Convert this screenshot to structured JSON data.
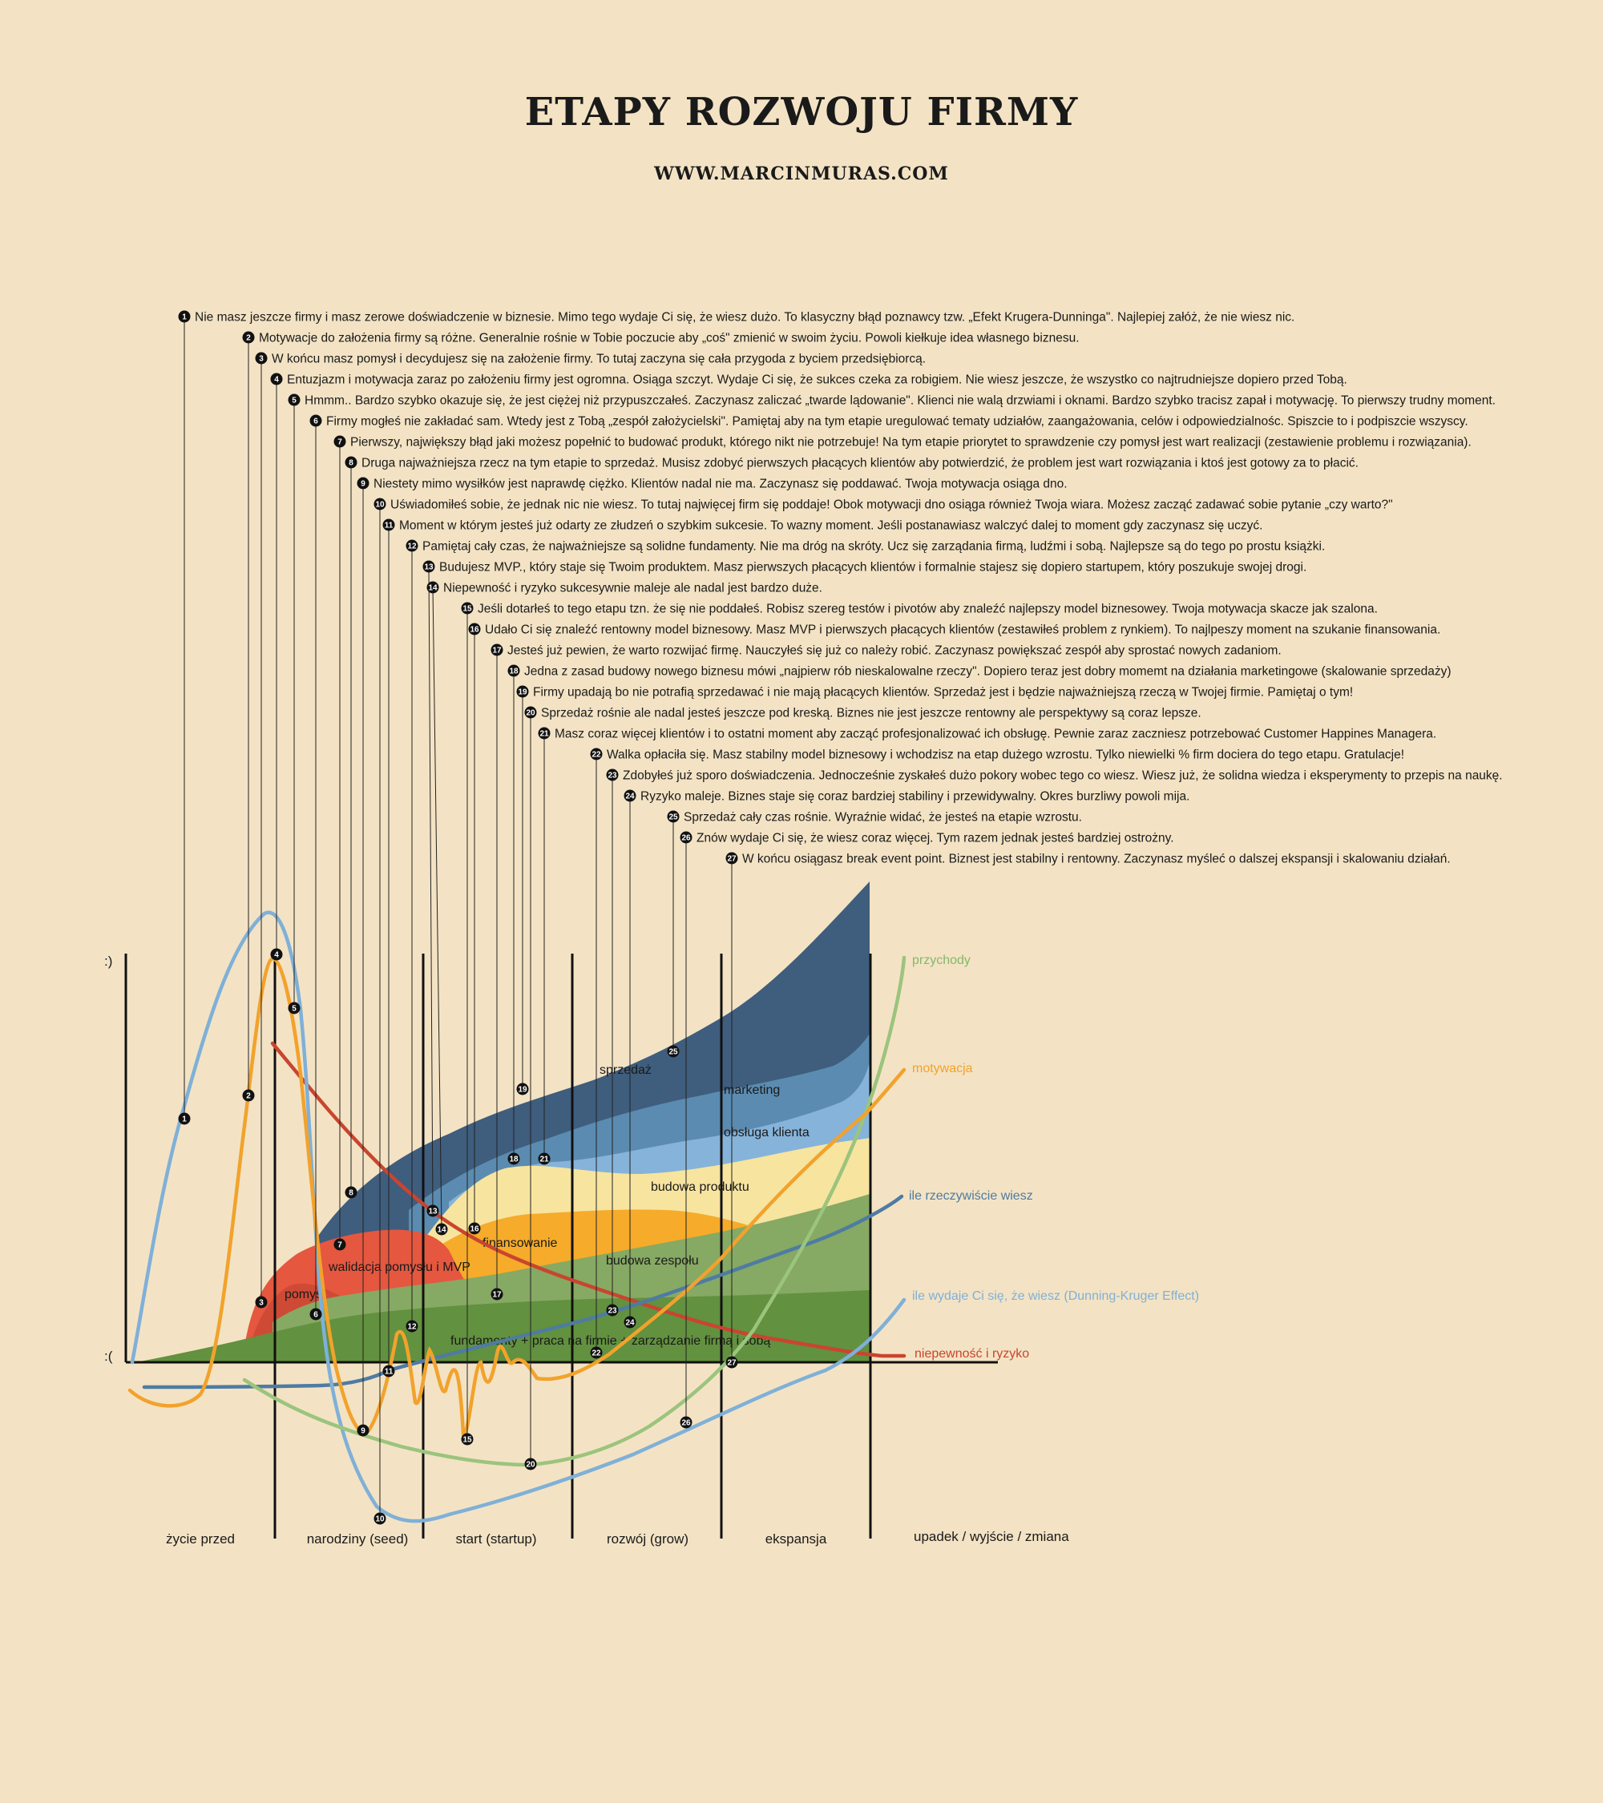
{
  "header": {
    "title": "ETAPY ROZWOJU FIRMY",
    "subtitle": "WWW.MARCINMURAS.COM"
  },
  "axis": {
    "top_label": ":)",
    "bottom_label": ":("
  },
  "notes": [
    {
      "n": "1",
      "text": "Nie masz jeszcze firmy i masz zerowe doświadczenie w biznesie. Mimo tego wydaje Ci się, że wiesz dużo. To klasyczny błąd poznawcy tzw. „Efekt Krugera-Dunninga\". Najlepiej załóż, że nie wiesz nic."
    },
    {
      "n": "2",
      "text": "Motywacje do założenia firmy są różne. Generalnie rośnie w Tobie poczucie aby „coś\" zmienić w swoim życiu. Powoli kiełkuje idea własnego biznesu."
    },
    {
      "n": "3",
      "text": "W końcu masz pomysł i decydujesz się na założenie firmy. To tutaj zaczyna się cała przygoda z byciem przedsiębiorcą."
    },
    {
      "n": "4",
      "text": "Entuzjazm i motywacja zaraz po założeniu firmy jest ogromna. Osiąga szczyt. Wydaje Ci się, że sukces czeka za robigiem. Nie wiesz jeszcze, że wszystko co najtrudniejsze dopiero przed Tobą."
    },
    {
      "n": "5",
      "text": "Hmmm.. Bardzo szybko okazuje się, że jest ciężej niż przypuszczałeś. Zaczynasz zaliczać „twarde lądowanie\". Klienci nie walą drzwiami i oknami. Bardzo szybko tracisz zapał i motywację. To pierwszy trudny moment."
    },
    {
      "n": "6",
      "text": "Firmy mogłeś nie zakładać sam. Wtedy jest z Tobą „zespół założycielski\". Pamiętaj aby na tym etapie uregulować tematy udziałów, zaangażowania, celów i odpowiedzialnośc. Spiszcie to i podpiszcie wszyscy."
    },
    {
      "n": "7",
      "text": "Pierwszy, największy błąd jaki możesz popełnić to budować produkt, którego nikt nie potrzebuje! Na tym etapie priorytet to sprawdzenie czy pomysł jest wart realizacji (zestawienie problemu i rozwiązania)."
    },
    {
      "n": "8",
      "text": "Druga najważniejsza rzecz na tym etapie to sprzedaż. Musisz zdobyć pierwszych płacących klientów aby potwierdzić, że problem jest wart rozwiązania i ktoś jest gotowy za to płacić."
    },
    {
      "n": "9",
      "text": "Niestety mimo wysiłków jest naprawdę ciężko. Klientów nadal nie ma. Zaczynasz się poddawać. Twoja motywacja osiąga dno."
    },
    {
      "n": "10",
      "text": "Uświadomiłeś sobie, że jednak nic nie wiesz. To tutaj najwięcej firm się poddaje! Obok motywacji dno osiąga również Twoja wiara. Możesz zacząć zadawać sobie pytanie „czy warto?\""
    },
    {
      "n": "11",
      "text": "Moment w którym jesteś już odarty ze złudzeń o szybkim sukcesie. To wazny moment. Jeśli postanawiasz walczyć dalej to moment gdy zaczynasz się uczyć."
    },
    {
      "n": "12",
      "text": "Pamiętaj cały czas, że najważniejsze są solidne fundamenty. Nie ma dróg na skróty. Ucz się zarządania firmą, ludźmi i sobą. Najlepsze są do tego po prostu książki."
    },
    {
      "n": "13",
      "text": "Budujesz MVP., który staje się Twoim produktem. Masz pierwszych płacących klientów i formalnie stajesz się dopiero startupem, który poszukuje swojej drogi."
    },
    {
      "n": "14",
      "text": "Niepewność i ryzyko sukcesywnie maleje ale nadal jest bardzo duże."
    },
    {
      "n": "15",
      "text": "Jeśli dotarłeś to tego etapu tzn. że się nie poddałeś. Robisz szereg testów i pivotów aby znaleźć najlepszy model biznesowey. Twoja motywacja skacze jak szalona."
    },
    {
      "n": "16",
      "text": "Udało Ci się znaleźć rentowny model biznesowy. Masz MVP i pierwszych płacących klientów (zestawiłeś problem z rynkiem). To najlpeszy moment na szukanie finansowania."
    },
    {
      "n": "17",
      "text": "Jesteś już pewien, że warto rozwijać firmę. Nauczyłeś się już co należy robić. Zaczynasz powiększać zespół aby sprostać nowych zadaniom."
    },
    {
      "n": "18",
      "text": "Jedna z zasad budowy nowego biznesu mówi „najpierw rób nieskalowalne rzeczy\". Dopiero teraz jest dobry momemt na działania marketingowe (skalowanie sprzedaży)"
    },
    {
      "n": "19",
      "text": "Firmy upadają bo nie potrafią sprzedawać i nie mają płacących klientów. Sprzedaż jest i będzie najważniejszą rzeczą w Twojej firmie. Pamiętaj o tym!"
    },
    {
      "n": "20",
      "text": "Sprzedaż rośnie ale nadal jesteś jeszcze pod kreską. Biznes nie jest jeszcze rentowny ale perspektywy są coraz lepsze."
    },
    {
      "n": "21",
      "text": "Masz coraz więcej klientów i to ostatni moment aby zacząć profesjonalizować ich obsługę. Pewnie zaraz zaczniesz potrzebować Customer Happines Managera."
    },
    {
      "n": "22",
      "text": "Walka opłaciła się. Masz stabilny model biznesowy i wchodzisz na etap dużego wzrostu. Tylko niewielki % firm dociera do tego etapu. Gratulacje!"
    },
    {
      "n": "23",
      "text": "Zdobyłeś już sporo doświadczenia. Jednocześnie zyskałeś dużo pokory wobec tego co wiesz. Wiesz już, że solidna wiedza i eksperymenty to przepis na naukę."
    },
    {
      "n": "24",
      "text": "Ryzyko maleje. Biznes staje się coraz bardziej stabiliny i przewidywalny. Okres burzliwy powoli mija."
    },
    {
      "n": "25",
      "text": "Sprzedaż cały czas rośnie. Wyraźnie widać, że jesteś na etapie wzrostu."
    },
    {
      "n": "26",
      "text": "Znów wydaje Ci się, że wiesz coraz więcej. Tym razem  jednak jesteś bardziej ostrożny."
    },
    {
      "n": "27",
      "text": "W końcu osiągasz break event point. Biznest jest stabilny i rentowny. Zaczynasz myśleć o dalszej ekspansji i skalowaniu działań."
    }
  ],
  "bands": {
    "sprzedaz": "sprzedaż",
    "marketing": "marketing",
    "obsluga": "obsługa klienta",
    "produkt": "budowa produktu",
    "finansowanie": "finansowanie",
    "zespol": "budowa zespołu",
    "walidacja": "walidacja pomysłu i MVP",
    "pomysl": "pomysł",
    "fundamenty": "fundamenty + praca na firmie + zarządzanie firmą i sobą"
  },
  "legend": [
    {
      "key": "przychody",
      "label": "przychody",
      "color": "#9bc47d"
    },
    {
      "key": "motywacja",
      "label": "motywacja",
      "color": "#f2a22c"
    },
    {
      "key": "wiesz",
      "label": "ile rzeczywiście wiesz",
      "color": "#4e7ba3"
    },
    {
      "key": "wydaje",
      "label": "ile wydaje Ci się, że wiesz (Dunning-Kruger Effect)",
      "color": "#7fb0d8"
    },
    {
      "key": "ryzyko",
      "label": "niepewność i ryzyko",
      "color": "#c9452f"
    }
  ],
  "stages": [
    "życie przed",
    "narodziny (seed)",
    "start (startup)",
    "rozwój (grow)",
    "ekspansja",
    "upadek / wyjście / zmiana"
  ]
}
